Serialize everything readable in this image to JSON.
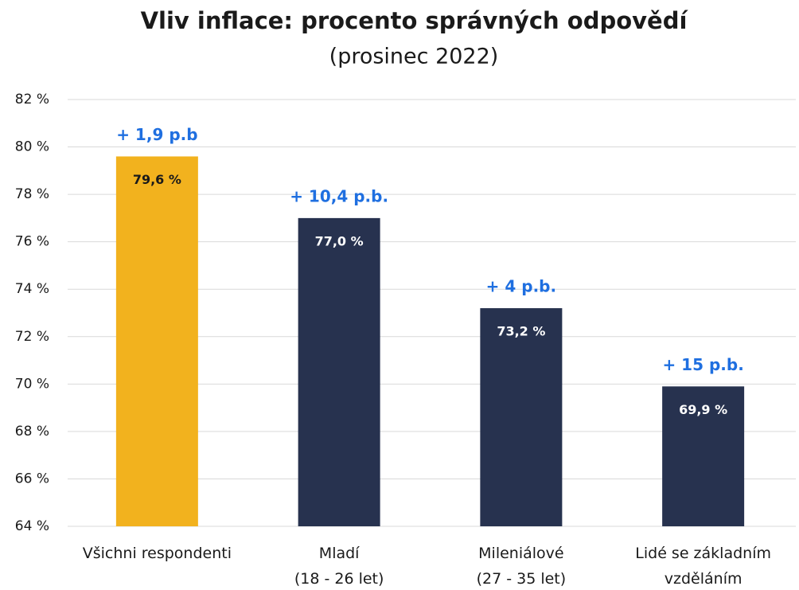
{
  "chart_data": {
    "type": "bar",
    "title": "Vliv inflace: procento správných odpovědí",
    "subtitle": "(prosinec 2022)",
    "categories": [
      [
        "Všichni respondenti"
      ],
      [
        "Mladí",
        "(18 - 26 let)"
      ],
      [
        "Mileniálové",
        "(27 - 35 let)"
      ],
      [
        "Lidé se základním",
        "vzděláním"
      ]
    ],
    "values": [
      79.6,
      77.0,
      73.2,
      69.9
    ],
    "value_labels": [
      "79,6 %",
      "77,0 %",
      "73,2 %",
      "69,9 %"
    ],
    "annotations": [
      "+ 1,9 p.b",
      "+ 10,4 p.b.",
      "+ 4 p.b.",
      "+ 15 p.b."
    ],
    "colors": [
      "#f2b21e",
      "#27324f",
      "#27324f",
      "#27324f"
    ],
    "value_label_colors": [
      "#1a1a1a",
      "#ffffff",
      "#ffffff",
      "#ffffff"
    ],
    "annotation_color": "#1f6fe0",
    "ylim": [
      64,
      82
    ],
    "yticks": [
      {
        "value": 64,
        "label": "64 %"
      },
      {
        "value": 66,
        "label": "66 %"
      },
      {
        "value": 68,
        "label": "68 %"
      },
      {
        "value": 70,
        "label": "70 %"
      },
      {
        "value": 72,
        "label": "72 %"
      },
      {
        "value": 74,
        "label": "74 %"
      },
      {
        "value": 76,
        "label": "76 %"
      },
      {
        "value": 78,
        "label": "78 %"
      },
      {
        "value": 80,
        "label": "80 %"
      },
      {
        "value": 82,
        "label": "82 %"
      }
    ],
    "grid": true
  }
}
